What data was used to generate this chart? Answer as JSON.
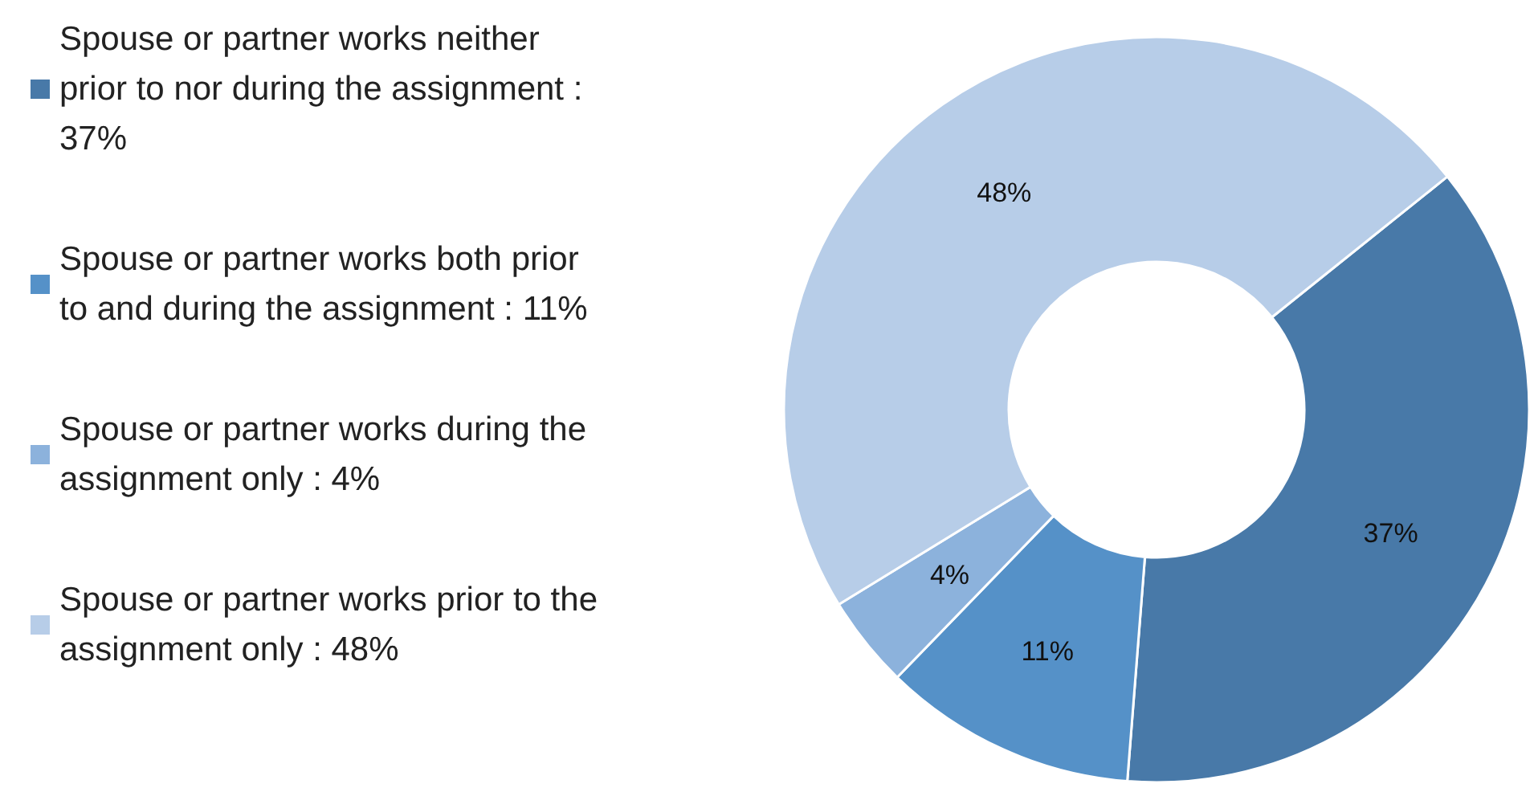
{
  "chart_data": {
    "type": "donut",
    "categories": [
      "Spouse or partner works neither prior to nor during the assignment : 37%",
      "Spouse or partner works both prior to and during the assignment : 11%",
      "Spouse or partner works during the assignment only : 4%",
      "Spouse or partner works prior to the assignment only : 48%"
    ],
    "values": [
      37,
      11,
      4,
      48
    ],
    "colors": [
      "#4879a8",
      "#5591c8",
      "#8cb2dc",
      "#b7cde8"
    ],
    "value_labels": [
      "37%",
      "11%",
      "4%",
      "48%"
    ],
    "legend": "left"
  }
}
